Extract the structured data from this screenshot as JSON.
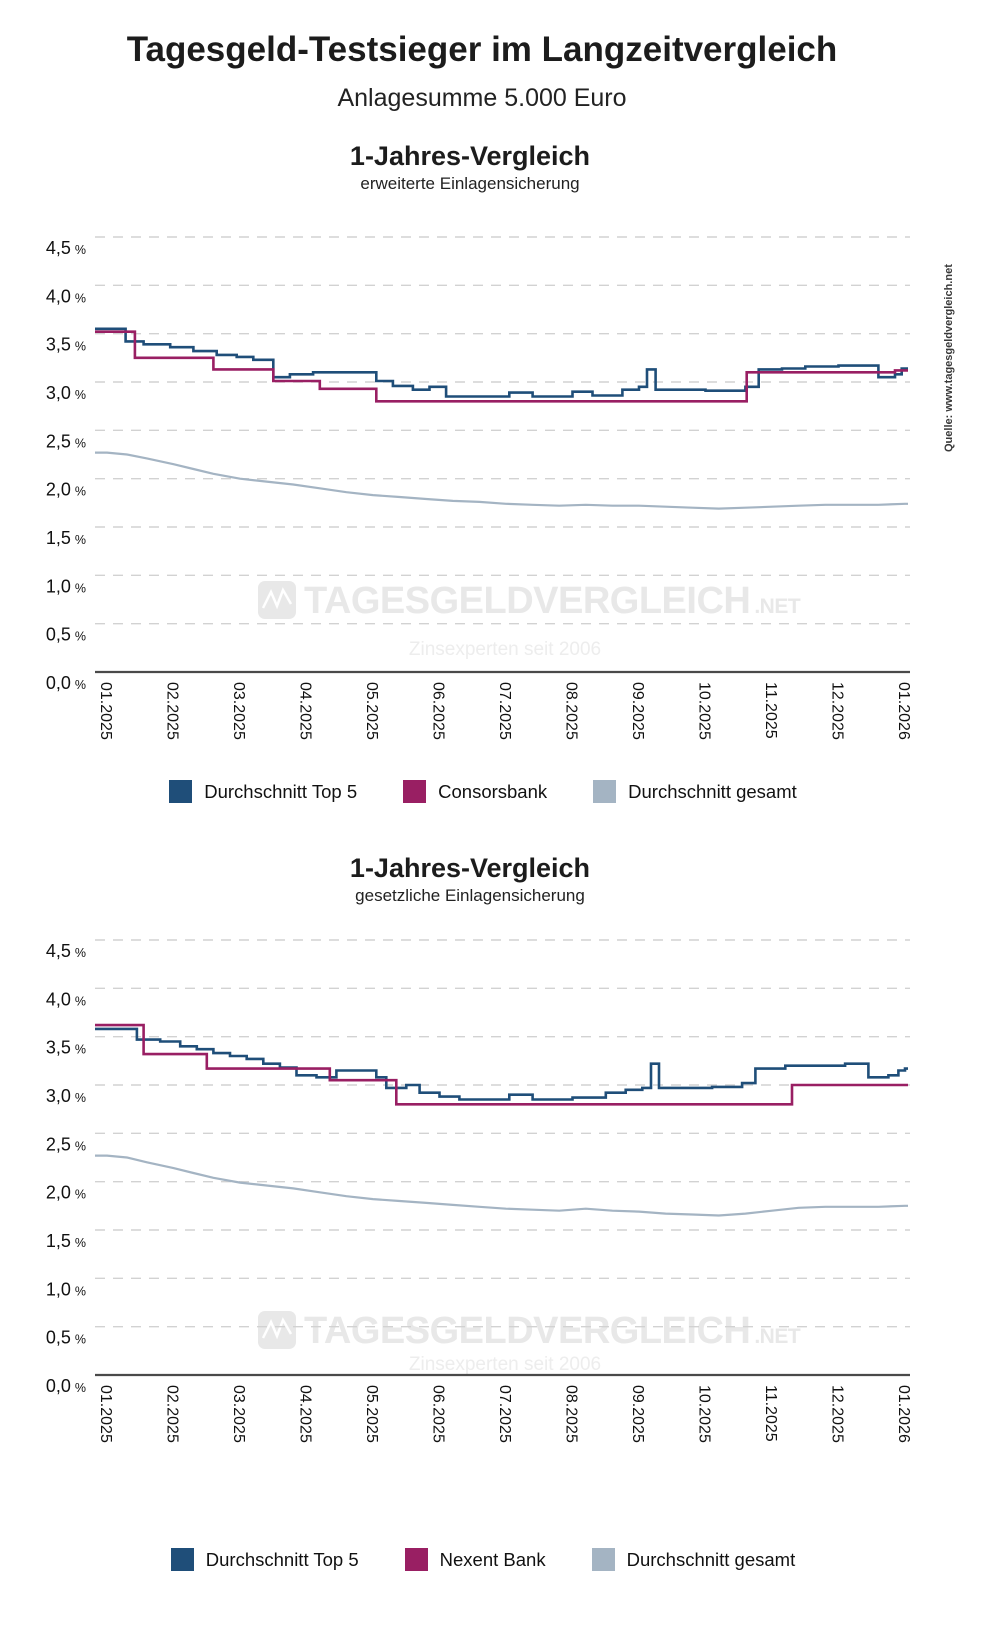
{
  "page": {
    "title": "Tagesgeld-Testsieger im Langzeitvergleich",
    "subtitle": "Anlagesumme 5.000 Euro",
    "source_note": "Quelle: www.tagesgeldvergleich.net",
    "watermark": {
      "logo": "chart-pulse-icon",
      "brand": "TAGESGELDVERGLEICH",
      "tld": ".NET",
      "tagline": "Zinsexperten seit 2006"
    }
  },
  "colors": {
    "top5": "#1f4e79",
    "bank": "#991f63",
    "gesamt": "#a4b4c3",
    "grid": "#d2d2d2",
    "axis": "#4a4a4a",
    "text": "#1a1a1a",
    "tick_text": "#111111",
    "watermark": "#e8e8e8",
    "source_text": "#3a3a3a"
  },
  "chart_data": [
    {
      "type": "line",
      "title": "1-Jahres-Vergleich",
      "subtitle": "erweiterte Einlagensicherung",
      "ylabel_unit": "%",
      "ylim": [
        0,
        4.5
      ],
      "ytick_step": 0.5,
      "y_ticks": [
        "4,5",
        "4,0",
        "3,5",
        "3,0",
        "2,5",
        "2,0",
        "1,5",
        "1,0",
        "0,5",
        "0,0"
      ],
      "x_ticks": [
        "01.2025",
        "02.2025",
        "03.2025",
        "04.2025",
        "05.2025",
        "06.2025",
        "07.2025",
        "08.2025",
        "09.2025",
        "10.2025",
        "11.2025",
        "12.2025",
        "01.2026"
      ],
      "grid": "horizontal-dashed",
      "legend_position": "bottom",
      "series": [
        {
          "name": "Durchschnitt Top 5",
          "color_key": "top5",
          "step": true,
          "points": [
            [
              0,
              3.55
            ],
            [
              0.28,
              3.42
            ],
            [
              0.55,
              3.39
            ],
            [
              0.95,
              3.36
            ],
            [
              1.3,
              3.32
            ],
            [
              1.65,
              3.28
            ],
            [
              1.95,
              3.26
            ],
            [
              2.2,
              3.23
            ],
            [
              2.5,
              3.05
            ],
            [
              2.75,
              3.08
            ],
            [
              3.1,
              3.1
            ],
            [
              4.05,
              3.01
            ],
            [
              4.3,
              2.96
            ],
            [
              4.6,
              2.92
            ],
            [
              4.85,
              2.95
            ],
            [
              5.1,
              2.85
            ],
            [
              6.05,
              2.89
            ],
            [
              6.4,
              2.85
            ],
            [
              7,
              2.9
            ],
            [
              7.3,
              2.86
            ],
            [
              7.75,
              2.92
            ],
            [
              8,
              2.95
            ],
            [
              8.12,
              3.13
            ],
            [
              8.25,
              2.92
            ],
            [
              9,
              2.91
            ],
            [
              9.6,
              2.95
            ],
            [
              9.8,
              3.13
            ],
            [
              10.15,
              3.14
            ],
            [
              10.5,
              3.16
            ],
            [
              11,
              3.17
            ],
            [
              11.6,
              3.05
            ],
            [
              11.85,
              3.08
            ],
            [
              11.95,
              3.14
            ],
            [
              12,
              3.14
            ]
          ]
        },
        {
          "name": "Consorsbank",
          "color_key": "bank",
          "step": true,
          "points": [
            [
              0,
              3.52
            ],
            [
              0.42,
              3.25
            ],
            [
              1.6,
              3.13
            ],
            [
              2.5,
              3.01
            ],
            [
              3.2,
              2.93
            ],
            [
              4.05,
              2.8
            ],
            [
              9.62,
              3.1
            ],
            [
              11.85,
              3.12
            ],
            [
              12,
              3.12
            ]
          ]
        },
        {
          "name": "Durchschnitt gesamt",
          "color_key": "gesamt",
          "step": false,
          "points": [
            [
              0,
              2.27
            ],
            [
              0.3,
              2.25
            ],
            [
              0.6,
              2.21
            ],
            [
              1,
              2.15
            ],
            [
              1.3,
              2.1
            ],
            [
              1.6,
              2.05
            ],
            [
              2,
              2
            ],
            [
              2.4,
              1.97
            ],
            [
              2.8,
              1.94
            ],
            [
              3.2,
              1.9
            ],
            [
              3.6,
              1.86
            ],
            [
              4,
              1.83
            ],
            [
              4.4,
              1.81
            ],
            [
              4.8,
              1.79
            ],
            [
              5.2,
              1.77
            ],
            [
              5.6,
              1.76
            ],
            [
              6,
              1.74
            ],
            [
              6.4,
              1.73
            ],
            [
              6.8,
              1.72
            ],
            [
              7.2,
              1.73
            ],
            [
              7.6,
              1.72
            ],
            [
              8,
              1.72
            ],
            [
              8.4,
              1.71
            ],
            [
              8.8,
              1.7
            ],
            [
              9.2,
              1.69
            ],
            [
              9.6,
              1.7
            ],
            [
              10,
              1.71
            ],
            [
              10.4,
              1.72
            ],
            [
              10.8,
              1.73
            ],
            [
              11.2,
              1.73
            ],
            [
              11.6,
              1.73
            ],
            [
              12,
              1.74
            ]
          ]
        }
      ]
    },
    {
      "type": "line",
      "title": "1-Jahres-Vergleich",
      "subtitle": "gesetzliche Einlagensicherung",
      "ylabel_unit": "%",
      "ylim": [
        0,
        4.5
      ],
      "ytick_step": 0.5,
      "y_ticks": [
        "4,5",
        "4,0",
        "3,5",
        "3,0",
        "2,5",
        "2,0",
        "1,5",
        "1,0",
        "0,5",
        "0,0"
      ],
      "x_ticks": [
        "01.2025",
        "02.2025",
        "03.2025",
        "04.2025",
        "05.2025",
        "06.2025",
        "07.2025",
        "08.2025",
        "09.2025",
        "10.2025",
        "11.2025",
        "12.2025",
        "01.2026"
      ],
      "grid": "horizontal-dashed",
      "legend_position": "bottom",
      "series": [
        {
          "name": "Durchschnitt Top 5",
          "color_key": "top5",
          "step": true,
          "points": [
            [
              0,
              3.58
            ],
            [
              0.45,
              3.47
            ],
            [
              0.8,
              3.45
            ],
            [
              1.1,
              3.4
            ],
            [
              1.35,
              3.37
            ],
            [
              1.6,
              3.33
            ],
            [
              1.85,
              3.3
            ],
            [
              2.1,
              3.27
            ],
            [
              2.35,
              3.22
            ],
            [
              2.6,
              3.18
            ],
            [
              2.85,
              3.1
            ],
            [
              3.15,
              3.08
            ],
            [
              3.45,
              3.15
            ],
            [
              4.05,
              3.08
            ],
            [
              4.2,
              2.97
            ],
            [
              4.5,
              3
            ],
            [
              4.7,
              2.92
            ],
            [
              5,
              2.88
            ],
            [
              5.3,
              2.85
            ],
            [
              6.05,
              2.9
            ],
            [
              6.4,
              2.85
            ],
            [
              7,
              2.87
            ],
            [
              7.5,
              2.92
            ],
            [
              7.8,
              2.95
            ],
            [
              8.05,
              2.97
            ],
            [
              8.18,
              3.22
            ],
            [
              8.3,
              2.97
            ],
            [
              9.1,
              2.98
            ],
            [
              9.55,
              3.02
            ],
            [
              9.75,
              3.17
            ],
            [
              10.2,
              3.2
            ],
            [
              11.1,
              3.22
            ],
            [
              11.45,
              3.08
            ],
            [
              11.75,
              3.1
            ],
            [
              11.9,
              3.15
            ],
            [
              12,
              3.17
            ]
          ]
        },
        {
          "name": "Nexent Bank",
          "color_key": "bank",
          "step": true,
          "points": [
            [
              0,
              3.62
            ],
            [
              0.55,
              3.32
            ],
            [
              1.5,
              3.17
            ],
            [
              3.35,
              3.05
            ],
            [
              4.35,
              2.8
            ],
            [
              10.3,
              3
            ],
            [
              12,
              3
            ]
          ]
        },
        {
          "name": "Durchschnitt gesamt",
          "color_key": "gesamt",
          "step": false,
          "points": [
            [
              0,
              2.27
            ],
            [
              0.3,
              2.25
            ],
            [
              0.6,
              2.2
            ],
            [
              1,
              2.14
            ],
            [
              1.3,
              2.09
            ],
            [
              1.6,
              2.04
            ],
            [
              2,
              1.99
            ],
            [
              2.4,
              1.96
            ],
            [
              2.8,
              1.93
            ],
            [
              3.2,
              1.89
            ],
            [
              3.6,
              1.85
            ],
            [
              4,
              1.82
            ],
            [
              4.4,
              1.8
            ],
            [
              4.8,
              1.78
            ],
            [
              5.2,
              1.76
            ],
            [
              5.6,
              1.74
            ],
            [
              6,
              1.72
            ],
            [
              6.4,
              1.71
            ],
            [
              6.8,
              1.7
            ],
            [
              7.2,
              1.72
            ],
            [
              7.6,
              1.7
            ],
            [
              8,
              1.69
            ],
            [
              8.4,
              1.67
            ],
            [
              8.8,
              1.66
            ],
            [
              9.2,
              1.65
            ],
            [
              9.6,
              1.67
            ],
            [
              10,
              1.7
            ],
            [
              10.4,
              1.73
            ],
            [
              10.8,
              1.74
            ],
            [
              11.2,
              1.74
            ],
            [
              11.6,
              1.74
            ],
            [
              12,
              1.75
            ]
          ]
        }
      ]
    }
  ]
}
